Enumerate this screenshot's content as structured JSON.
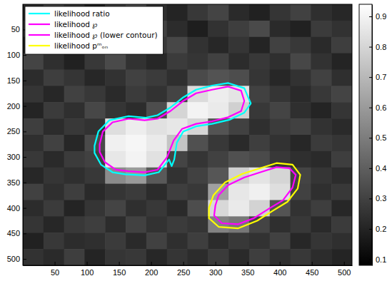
{
  "chart_data": {
    "type": "heatmap_contour",
    "xlim": [
      0.5,
      512.5
    ],
    "ylim": [
      512.5,
      0.5
    ],
    "xticks": [
      50,
      100,
      150,
      200,
      250,
      300,
      350,
      400,
      450,
      500
    ],
    "yticks": [
      50,
      100,
      150,
      200,
      250,
      300,
      350,
      400,
      450,
      500
    ],
    "legend": "upper left",
    "color_range": [
      0.08,
      0.94
    ],
    "color_ticks": [
      0.1,
      0.2,
      0.3,
      0.4,
      0.5,
      0.6,
      0.7,
      0.8,
      0.9
    ],
    "cells": [
      [
        0.22,
        0.3,
        0.25,
        0.18,
        0.28,
        0.33,
        0.24,
        0.2,
        0.27,
        0.31,
        0.22,
        0.19,
        0.26,
        0.3,
        0.24,
        0.21
      ],
      [
        0.27,
        0.2,
        0.32,
        0.25,
        0.19,
        0.26,
        0.3,
        0.23,
        0.18,
        0.25,
        0.29,
        0.33,
        0.22,
        0.19,
        0.28,
        0.25
      ],
      [
        0.19,
        0.26,
        0.23,
        0.3,
        0.24,
        0.18,
        0.27,
        0.32,
        0.25,
        0.21,
        0.26,
        0.2,
        0.3,
        0.27,
        0.22,
        0.29
      ],
      [
        0.31,
        0.24,
        0.19,
        0.27,
        0.33,
        0.25,
        0.21,
        0.28,
        0.26,
        0.3,
        0.23,
        0.27,
        0.24,
        0.32,
        0.25,
        0.2
      ],
      [
        0.23,
        0.29,
        0.26,
        0.21,
        0.25,
        0.3,
        0.28,
        0.24,
        0.33,
        0.36,
        0.34,
        0.26,
        0.21,
        0.25,
        0.3,
        0.24
      ],
      [
        0.26,
        0.21,
        0.3,
        0.27,
        0.22,
        0.28,
        0.25,
        0.31,
        0.82,
        0.88,
        0.85,
        0.3,
        0.26,
        0.22,
        0.27,
        0.31
      ],
      [
        0.2,
        0.28,
        0.24,
        0.32,
        0.26,
        0.23,
        0.34,
        0.8,
        0.9,
        0.87,
        0.78,
        0.27,
        0.31,
        0.24,
        0.2,
        0.26
      ],
      [
        0.29,
        0.23,
        0.27,
        0.25,
        0.83,
        0.88,
        0.84,
        0.86,
        0.8,
        0.36,
        0.3,
        0.24,
        0.28,
        0.3,
        0.25,
        0.22
      ],
      [
        0.24,
        0.3,
        0.21,
        0.33,
        0.89,
        0.91,
        0.87,
        0.74,
        0.35,
        0.27,
        0.22,
        0.29,
        0.25,
        0.21,
        0.28,
        0.26
      ],
      [
        0.27,
        0.22,
        0.28,
        0.3,
        0.86,
        0.9,
        0.84,
        0.31,
        0.26,
        0.3,
        0.35,
        0.33,
        0.27,
        0.24,
        0.22,
        0.29
      ],
      [
        0.21,
        0.26,
        0.24,
        0.27,
        0.55,
        0.6,
        0.38,
        0.25,
        0.3,
        0.37,
        0.78,
        0.85,
        0.8,
        0.31,
        0.26,
        0.23
      ],
      [
        0.3,
        0.24,
        0.29,
        0.22,
        0.26,
        0.28,
        0.23,
        0.29,
        0.27,
        0.62,
        0.86,
        0.89,
        0.83,
        0.3,
        0.24,
        0.27
      ],
      [
        0.23,
        0.28,
        0.2,
        0.26,
        0.31,
        0.24,
        0.27,
        0.22,
        0.34,
        0.81,
        0.87,
        0.79,
        0.36,
        0.25,
        0.29,
        0.21
      ],
      [
        0.26,
        0.21,
        0.27,
        0.29,
        0.23,
        0.3,
        0.25,
        0.28,
        0.26,
        0.52,
        0.48,
        0.31,
        0.24,
        0.27,
        0.22,
        0.28
      ],
      [
        0.19,
        0.27,
        0.23,
        0.24,
        0.28,
        0.22,
        0.3,
        0.24,
        0.29,
        0.23,
        0.27,
        0.25,
        0.3,
        0.21,
        0.26,
        0.24
      ],
      [
        0.25,
        0.22,
        0.29,
        0.2,
        0.26,
        0.27,
        0.21,
        0.26,
        0.23,
        0.28,
        0.22,
        0.29,
        0.24,
        0.27,
        0.23,
        0.2
      ]
    ],
    "series": [
      {
        "name": "likelihood ratio",
        "color": "#00ffff",
        "x": [
          112,
          118,
          135,
          165,
          192,
          210,
          230,
          250,
          270,
          295,
          320,
          345,
          355,
          345,
          322,
          295,
          270,
          250,
          240,
          236,
          232,
          228,
          212,
          190,
          160,
          140,
          122,
          112
        ],
        "y": [
          278,
          250,
          228,
          220,
          223,
          218,
          203,
          183,
          168,
          160,
          155,
          165,
          195,
          213,
          227,
          235,
          240,
          250,
          272,
          305,
          318,
          305,
          330,
          336,
          334,
          330,
          315,
          292
        ]
      },
      {
        "name": "likelihood ℘",
        "color": "#ff00ff",
        "x": [
          120,
          125,
          140,
          165,
          190,
          210,
          230,
          250,
          270,
          295,
          320,
          340,
          345,
          340,
          320,
          295,
          270,
          248,
          235,
          225,
          210,
          190,
          165,
          145,
          128,
          120
        ],
        "y": [
          275,
          250,
          232,
          225,
          228,
          225,
          210,
          190,
          175,
          168,
          162,
          170,
          190,
          210,
          222,
          230,
          235,
          245,
          268,
          300,
          325,
          330,
          328,
          325,
          310,
          290
        ]
      },
      {
        "name": "likelihood ℘ (lower contour)",
        "color": "#ff00ff",
        "x": [
          300,
          305,
          320,
          345,
          370,
          395,
          415,
          425,
          420,
          405,
          385,
          360,
          335,
          310,
          298
        ],
        "y": [
          395,
          375,
          355,
          340,
          330,
          320,
          322,
          335,
          360,
          385,
          400,
          420,
          432,
          430,
          415
        ]
      },
      {
        "name": "likelihood pᵐₒₙ",
        "color": "#ffff00",
        "x": [
          290,
          297,
          315,
          342,
          370,
          395,
          420,
          432,
          428,
          412,
          390,
          365,
          335,
          305,
          290
        ],
        "y": [
          400,
          375,
          350,
          333,
          322,
          312,
          315,
          335,
          362,
          388,
          405,
          425,
          440,
          437,
          420
        ]
      }
    ]
  }
}
